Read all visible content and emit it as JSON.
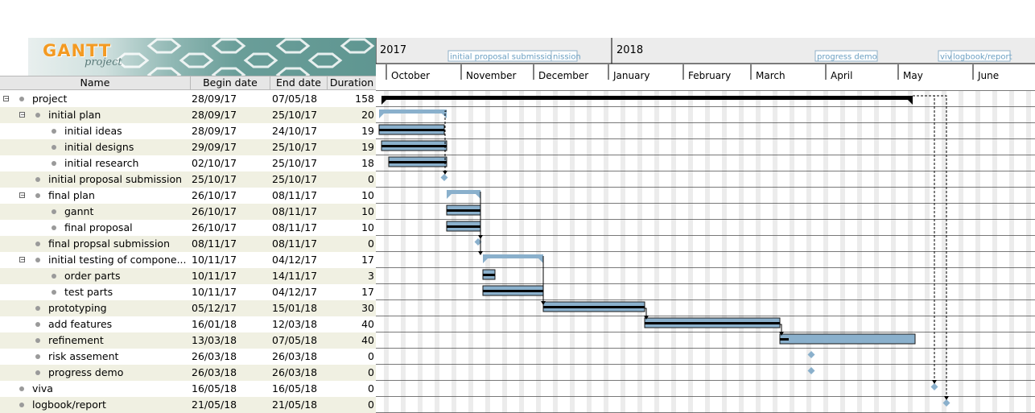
{
  "logo": {
    "title": "GANTT",
    "subtitle": "project"
  },
  "columns": {
    "name": "Name",
    "begin": "Begin date",
    "end": "End date",
    "duration": "Duration"
  },
  "years": [
    {
      "label": "2017"
    },
    {
      "label": "2018"
    }
  ],
  "months": [
    "October",
    "November",
    "December",
    "January",
    "February",
    "March",
    "April",
    "May",
    "June"
  ],
  "milestone_labels": [
    "initial proposal submission",
    "nission",
    "progress demo",
    "viv",
    "logbook/report"
  ],
  "colors": {
    "bar": "#8ab0cc",
    "bar_border": "#1a1a1a",
    "summary": "#000000",
    "alt_row": "#f0f0e2",
    "weekend": "#ececec"
  },
  "tasks": [
    {
      "name": "project",
      "begin": "28/09/17",
      "end": "07/05/18",
      "duration": "158",
      "level": 0,
      "expandable": true
    },
    {
      "name": "initial plan",
      "begin": "28/09/17",
      "end": "25/10/17",
      "duration": "20",
      "level": 1,
      "expandable": true
    },
    {
      "name": "initial ideas",
      "begin": "28/09/17",
      "end": "24/10/17",
      "duration": "19",
      "level": 2,
      "expandable": false
    },
    {
      "name": "initial designs",
      "begin": "29/09/17",
      "end": "25/10/17",
      "duration": "19",
      "level": 2,
      "expandable": false
    },
    {
      "name": "initial research",
      "begin": "02/10/17",
      "end": "25/10/17",
      "duration": "18",
      "level": 2,
      "expandable": false
    },
    {
      "name": "initial proposal submission",
      "begin": "25/10/17",
      "end": "25/10/17",
      "duration": "0",
      "level": 1,
      "expandable": false
    },
    {
      "name": "final plan",
      "begin": "26/10/17",
      "end": "08/11/17",
      "duration": "10",
      "level": 1,
      "expandable": true
    },
    {
      "name": "gannt",
      "begin": "26/10/17",
      "end": "08/11/17",
      "duration": "10",
      "level": 2,
      "expandable": false
    },
    {
      "name": "final proposal",
      "begin": "26/10/17",
      "end": "08/11/17",
      "duration": "10",
      "level": 2,
      "expandable": false
    },
    {
      "name": "final propsal submission",
      "begin": "08/11/17",
      "end": "08/11/17",
      "duration": "0",
      "level": 1,
      "expandable": false
    },
    {
      "name": "initial testing of compone...",
      "begin": "10/11/17",
      "end": "04/12/17",
      "duration": "17",
      "level": 1,
      "expandable": true
    },
    {
      "name": "order parts",
      "begin": "10/11/17",
      "end": "14/11/17",
      "duration": "3",
      "level": 2,
      "expandable": false
    },
    {
      "name": "test parts",
      "begin": "10/11/17",
      "end": "04/12/17",
      "duration": "17",
      "level": 2,
      "expandable": false
    },
    {
      "name": "prototyping",
      "begin": "05/12/17",
      "end": "15/01/18",
      "duration": "30",
      "level": 1,
      "expandable": false
    },
    {
      "name": "add features",
      "begin": "16/01/18",
      "end": "12/03/18",
      "duration": "40",
      "level": 1,
      "expandable": false
    },
    {
      "name": "refinement",
      "begin": "13/03/18",
      "end": "07/05/18",
      "duration": "40",
      "level": 1,
      "expandable": false
    },
    {
      "name": "risk assement",
      "begin": "26/03/18",
      "end": "26/03/18",
      "duration": "0",
      "level": 1,
      "expandable": false
    },
    {
      "name": "progress demo",
      "begin": "26/03/18",
      "end": "26/03/18",
      "duration": "0",
      "level": 1,
      "expandable": false
    },
    {
      "name": "viva",
      "begin": "16/05/18",
      "end": "16/05/18",
      "duration": "0",
      "level": 0,
      "expandable": false
    },
    {
      "name": "logbook/report",
      "begin": "21/05/18",
      "end": "21/05/18",
      "duration": "0",
      "level": 0,
      "expandable": false
    }
  ]
}
